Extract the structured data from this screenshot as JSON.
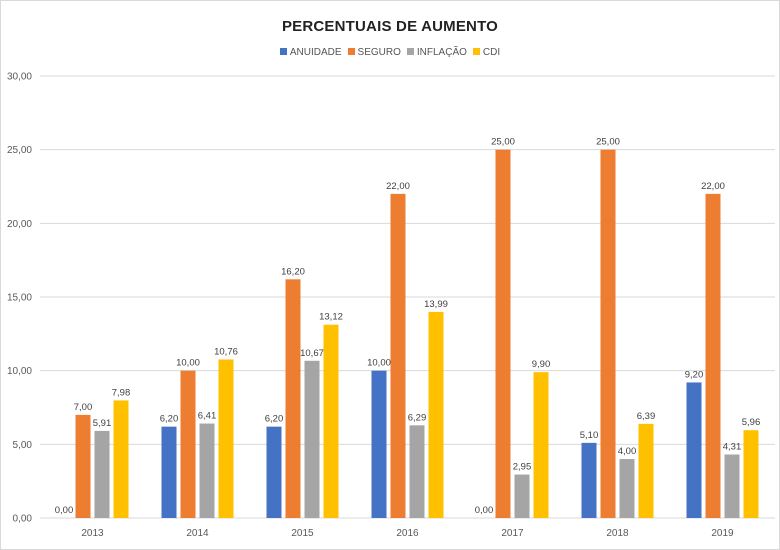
{
  "chart_data": {
    "type": "bar",
    "title": "PERCENTUAIS DE AUMENTO",
    "categories": [
      "2013",
      "2014",
      "2015",
      "2016",
      "2017",
      "2018",
      "2019"
    ],
    "series": [
      {
        "name": "ANUIDADE",
        "color": "#4472c4",
        "values": [
          0.0,
          6.2,
          6.2,
          10.0,
          0.0,
          5.1,
          9.2
        ],
        "labels": [
          "0,00",
          "6,20",
          "6,20",
          "10,00",
          "0,00",
          "5,10",
          "9,20"
        ]
      },
      {
        "name": "SEGURO",
        "color": "#ed7d31",
        "values": [
          7.0,
          10.0,
          16.2,
          22.0,
          25.0,
          25.0,
          22.0
        ],
        "labels": [
          "7,00",
          "10,00",
          "16,20",
          "22,00",
          "25,00",
          "25,00",
          "22,00"
        ]
      },
      {
        "name": "INFLAÇÃO",
        "color": "#a5a5a5",
        "values": [
          5.91,
          6.41,
          10.67,
          6.29,
          2.95,
          4.0,
          4.31
        ],
        "labels": [
          "5,91",
          "6,41",
          "10,67",
          "6,29",
          "2,95",
          "4,00",
          "4,31"
        ]
      },
      {
        "name": "CDI",
        "color": "#ffc000",
        "values": [
          7.98,
          10.76,
          13.12,
          13.99,
          9.9,
          6.39,
          5.96
        ],
        "labels": [
          "7,98",
          "10,76",
          "13,12",
          "13,99",
          "9,90",
          "6,39",
          "5,96"
        ]
      }
    ],
    "y_ticks": [
      0,
      5,
      10,
      15,
      20,
      25,
      30
    ],
    "y_tick_labels": [
      "0,00",
      "5,00",
      "10,00",
      "15,00",
      "20,00",
      "25,00",
      "30,00"
    ],
    "ylim": [
      0,
      30
    ],
    "grid": true,
    "legend_position": "top-center",
    "xlabel": "",
    "ylabel": ""
  }
}
